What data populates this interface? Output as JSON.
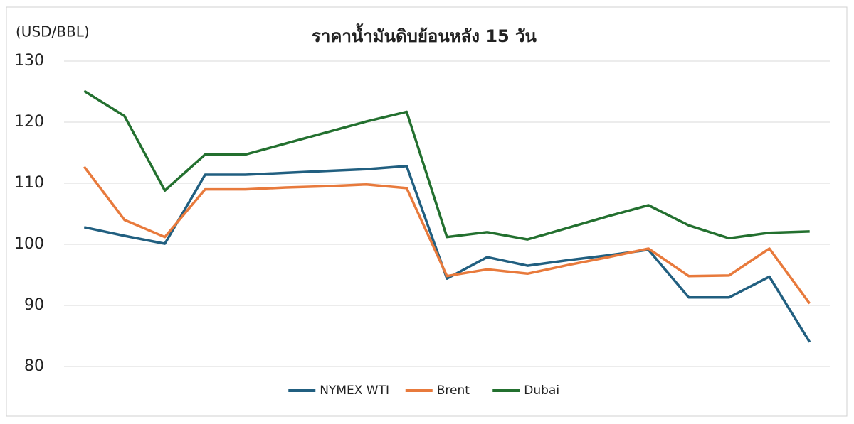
{
  "chart_data": {
    "type": "line",
    "title": "ราคาน้ำมันดิบย้อนหลัง 15 วัน",
    "y_label": "(USD/BBL)",
    "categories": [
      null,
      null,
      null,
      null,
      null,
      null,
      null,
      null,
      null,
      null,
      null,
      null,
      null,
      null,
      null,
      null,
      null,
      null,
      null
    ],
    "series": [
      {
        "name": "NYMEX WTI",
        "color": "#215f80",
        "values": [
          102.8,
          101.4,
          100.1,
          111.4,
          111.4,
          111.7,
          112.0,
          112.3,
          112.8,
          94.4,
          97.9,
          96.5,
          97.4,
          98.2,
          99.1,
          91.3,
          91.3,
          94.7,
          84.0
        ]
      },
      {
        "name": "Brent",
        "color": "#e87a3c",
        "values": [
          112.7,
          104.0,
          101.2,
          109.0,
          109.0,
          109.3,
          109.5,
          109.8,
          109.2,
          94.8,
          95.9,
          95.2,
          96.6,
          97.9,
          99.3,
          94.8,
          94.9,
          99.3,
          90.3
        ]
      },
      {
        "name": "Dubai",
        "color": "#23702f",
        "values": [
          125.1,
          121.0,
          108.8,
          114.7,
          114.7,
          116.5,
          118.3,
          120.1,
          121.7,
          101.2,
          102.0,
          100.8,
          102.7,
          104.6,
          106.4,
          103.1,
          101.0,
          101.9,
          102.1
        ]
      }
    ],
    "ylim": [
      80,
      130
    ],
    "yticks": [
      80,
      90,
      100,
      110,
      120,
      130
    ],
    "grid": true,
    "legend": "bottom"
  }
}
